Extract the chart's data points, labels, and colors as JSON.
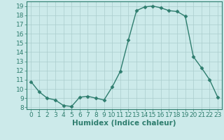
{
  "xlabel": "Humidex (Indice chaleur)",
  "x_values": [
    0,
    1,
    2,
    3,
    4,
    5,
    6,
    7,
    8,
    9,
    10,
    11,
    12,
    13,
    14,
    15,
    16,
    17,
    18,
    19,
    20,
    21,
    22,
    23
  ],
  "y_values": [
    10.8,
    9.7,
    9.0,
    8.8,
    8.2,
    8.1,
    9.1,
    9.2,
    9.0,
    8.8,
    10.2,
    11.9,
    15.3,
    18.5,
    18.9,
    19.0,
    18.8,
    18.5,
    18.4,
    17.9,
    13.5,
    12.3,
    11.0,
    9.1
  ],
  "line_color": "#2e7d6e",
  "marker": "D",
  "marker_size": 2.5,
  "bg_color": "#cceaea",
  "grid_color": "#aacccc",
  "tick_color": "#2e7d6e",
  "ylim": [
    7.8,
    19.5
  ],
  "yticks": [
    8,
    9,
    10,
    11,
    12,
    13,
    14,
    15,
    16,
    17,
    18,
    19
  ],
  "xlim": [
    -0.5,
    23.5
  ],
  "xticks": [
    0,
    1,
    2,
    3,
    4,
    5,
    6,
    7,
    8,
    9,
    10,
    11,
    12,
    13,
    14,
    15,
    16,
    17,
    18,
    19,
    20,
    21,
    22,
    23
  ],
  "font_color": "#2e7d6e",
  "axis_linewidth": 0.8,
  "xlabel_fontsize": 7.5,
  "tick_fontsize": 6.5
}
